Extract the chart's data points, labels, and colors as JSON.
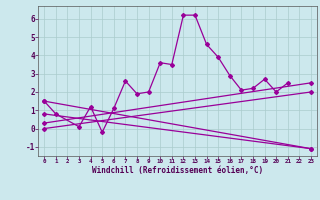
{
  "xlabel": "Windchill (Refroidissement éolien,°C)",
  "background_color": "#cce8ed",
  "line_color": "#990099",
  "grid_color": "#aacccc",
  "xlim": [
    -0.5,
    23.5
  ],
  "ylim": [
    -1.5,
    6.7
  ],
  "xticks": [
    0,
    1,
    2,
    3,
    4,
    5,
    6,
    7,
    8,
    9,
    10,
    11,
    12,
    13,
    14,
    15,
    16,
    17,
    18,
    19,
    20,
    21,
    22,
    23
  ],
  "yticks": [
    -1,
    0,
    1,
    2,
    3,
    4,
    5,
    6
  ],
  "series1_x": [
    0,
    1,
    3,
    4,
    5,
    6,
    7,
    8,
    9,
    10,
    11,
    12,
    13,
    14,
    15,
    16,
    17,
    18,
    19,
    20,
    21
  ],
  "series1_y": [
    1.5,
    0.8,
    0.1,
    1.2,
    -0.2,
    1.1,
    2.6,
    1.9,
    2.0,
    3.6,
    3.5,
    6.2,
    6.2,
    4.6,
    3.9,
    2.9,
    2.1,
    2.2,
    2.7,
    2.0,
    2.5
  ],
  "line2": [
    [
      0,
      1.5
    ],
    [
      23,
      -1.1
    ]
  ],
  "line3": [
    [
      0,
      0.8
    ],
    [
      23,
      -1.1
    ]
  ],
  "line4": [
    [
      0,
      0.3
    ],
    [
      23,
      2.5
    ]
  ],
  "line5": [
    [
      0,
      0.0
    ],
    [
      23,
      2.0
    ]
  ]
}
